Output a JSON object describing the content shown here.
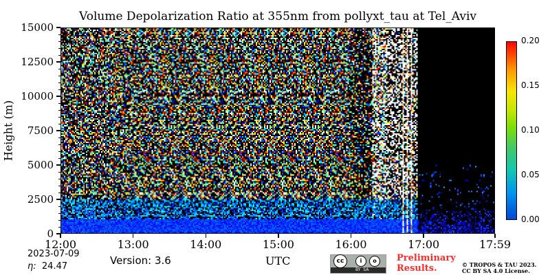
{
  "chart_data": {
    "type": "heatmap",
    "title": "Volume Depolarization Ratio at 355nm from pollyxt_tau at Tel_Aviv",
    "ylabel": "Height (m)",
    "xlabel": "UTC",
    "ylim": [
      0,
      15000
    ],
    "yticks": [
      "0",
      "2500",
      "5000",
      "7500",
      "10000",
      "12500",
      "15000"
    ],
    "ytick_values": [
      0,
      2500,
      5000,
      7500,
      10000,
      12500,
      15000
    ],
    "xlim": [
      "12:00",
      "17:59"
    ],
    "xticks": [
      "12:00",
      "13:00",
      "14:00",
      "15:00",
      "16:00",
      "17:00",
      "17:59"
    ],
    "xtick_hours": [
      12.0,
      13.0,
      14.0,
      15.0,
      16.0,
      17.0,
      17.983
    ],
    "colorbar": {
      "range": [
        0.0,
        0.2
      ],
      "ticks": [
        "0.00",
        "0.05",
        "0.10",
        "0.15",
        "0.20"
      ],
      "tick_values": [
        0.0,
        0.05,
        0.1,
        0.15,
        0.2
      ],
      "colormap": "jet-like (blue to red)"
    },
    "description_features": {
      "boundary_layer_top_m": 1000,
      "typical_boundary_layer_value": 0.02,
      "noisy_free_troposphere_until_utc": "16:45",
      "signal_loss_from_utc": "16:55"
    }
  },
  "footer": {
    "date": "2023-07-09",
    "eta_label": "η:",
    "eta_value": "24.47",
    "version": "Version: 3.6",
    "preliminary_line1": "Preliminary",
    "preliminary_line2": "Results.",
    "copyright_line1": "© TROPOS & TAU 2023.",
    "copyright_line2": "CC BY SA 4.0 License.",
    "cc_badge_text": "BY  SA"
  },
  "colors": {
    "preliminary": "#ff2a2a",
    "background_no_signal": "#000000"
  }
}
